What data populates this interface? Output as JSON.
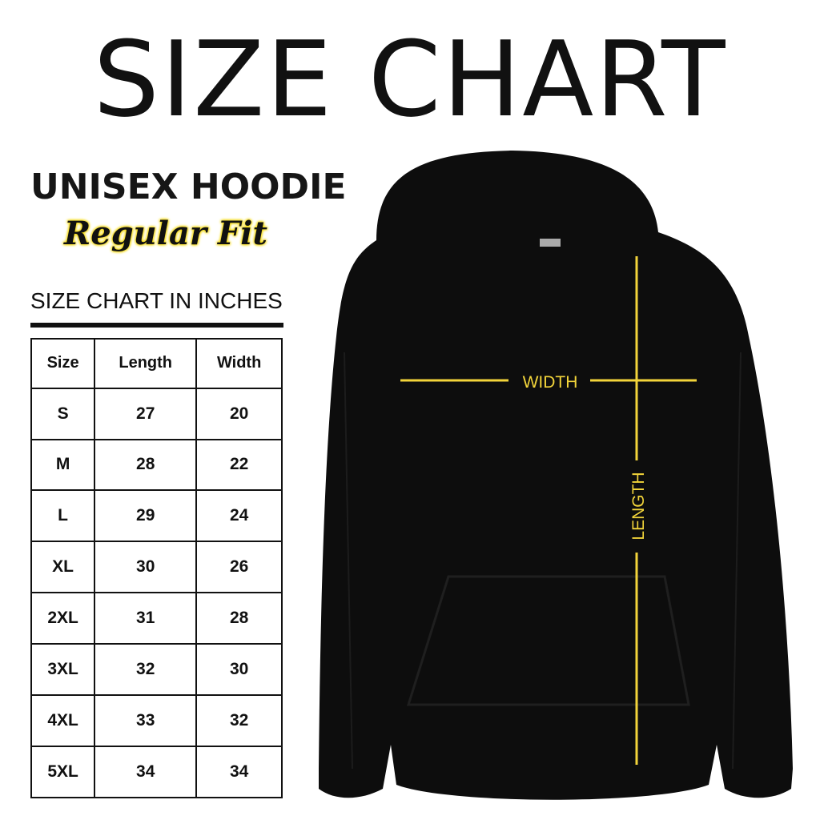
{
  "title": "SIZE CHART",
  "product": "UNISEX HOODIE",
  "fit": "Regular Fit",
  "unit_label": "SIZE CHART IN INCHES",
  "table": {
    "headers": [
      "Size",
      "Length",
      "Width"
    ],
    "rows": [
      [
        "S",
        "27",
        "20"
      ],
      [
        "M",
        "28",
        "22"
      ],
      [
        "L",
        "29",
        "24"
      ],
      [
        "XL",
        "30",
        "26"
      ],
      [
        "2XL",
        "31",
        "28"
      ],
      [
        "3XL",
        "32",
        "30"
      ],
      [
        "4XL",
        "33",
        "32"
      ],
      [
        "5XL",
        "34",
        "34"
      ]
    ]
  },
  "diagram": {
    "width_label": "WIDTH",
    "length_label": "LENGTH",
    "line_color": "#f2d43a",
    "garment_color": "#0d0d0d"
  }
}
